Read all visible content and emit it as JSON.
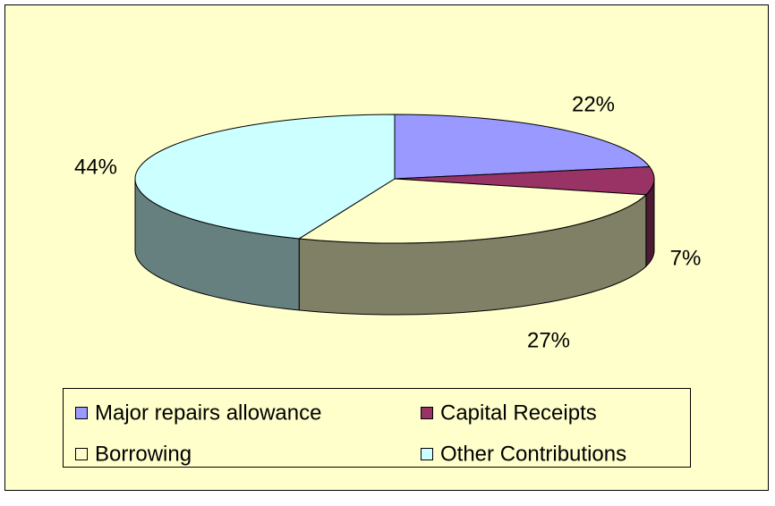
{
  "chart_data": {
    "type": "pie",
    "categories": [
      "Major repairs allowance",
      "Capital Receipts",
      "Borrowing",
      "Other Contributions"
    ],
    "values": [
      22,
      7,
      27,
      44
    ],
    "value_labels": [
      "22%",
      "7%",
      "27%",
      "44%"
    ],
    "colors": [
      "#9999FF",
      "#993366",
      "#FFFFCC",
      "#CCFFFF"
    ],
    "legend": "bottom"
  }
}
